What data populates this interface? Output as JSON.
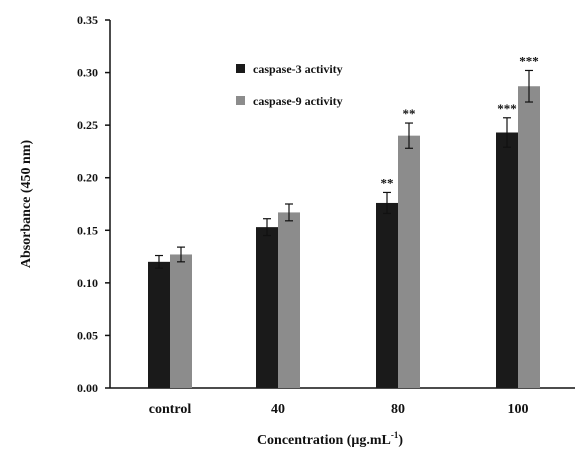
{
  "chart_data": {
    "type": "bar",
    "categories": [
      "control",
      "40",
      "80",
      "100"
    ],
    "series": [
      {
        "name": "caspase-3 activity",
        "color": "#1a1a1a",
        "values": [
          0.12,
          0.153,
          0.176,
          0.243
        ],
        "errors": [
          0.006,
          0.008,
          0.01,
          0.014
        ],
        "significance": [
          "",
          "",
          "**",
          "***"
        ]
      },
      {
        "name": "caspase-9 activity",
        "color": "#8c8c8c",
        "values": [
          0.127,
          0.167,
          0.24,
          0.287
        ],
        "errors": [
          0.007,
          0.008,
          0.012,
          0.015
        ],
        "significance": [
          "",
          "",
          "**",
          "***"
        ]
      }
    ],
    "xlabel_main": "Concentration (μg.mL",
    "xlabel_sup": "-1",
    "xlabel_close": ")",
    "ylabel": "Absorbance (450 nm)",
    "ylim": [
      0,
      0.35
    ],
    "yticks": [
      "0.00",
      "0.05",
      "0.10",
      "0.15",
      "0.20",
      "0.25",
      "0.30",
      "0.35"
    ],
    "legend_position": "top-center",
    "grid": false
  }
}
